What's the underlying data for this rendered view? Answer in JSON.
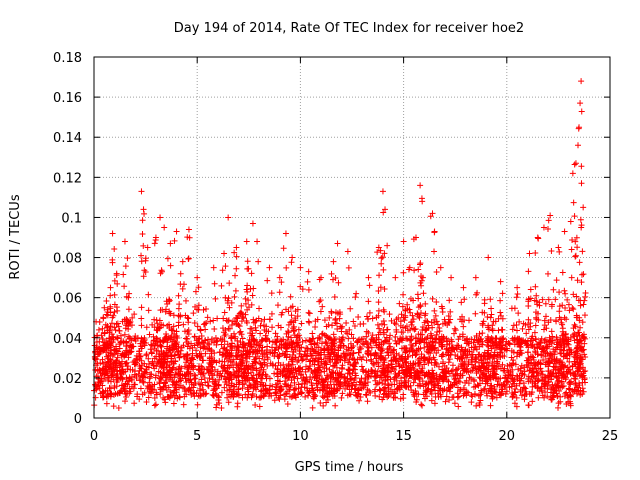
{
  "chart_data": {
    "type": "scatter",
    "title": "Day 194 of 2014, Rate Of TEC Index for receiver hoe2",
    "xlabel": "GPS time / hours",
    "ylabel": "ROTI / TECUs",
    "xlim": [
      0,
      25
    ],
    "ylim": [
      0,
      0.18
    ],
    "xticks": [
      0,
      5,
      10,
      15,
      20,
      25
    ],
    "xtick_labels": [
      "0",
      "5",
      "10",
      "15",
      "20",
      "25"
    ],
    "yticks": [
      0,
      0.02,
      0.04,
      0.06,
      0.08,
      0.1,
      0.12,
      0.14,
      0.16,
      0.18
    ],
    "ytick_labels": [
      "0",
      "0.02",
      "0.04",
      "0.06",
      "0.08",
      "0.1",
      "0.12",
      "0.14",
      "0.16",
      "0.18"
    ],
    "grid": true,
    "marker": "+",
    "color": "#ff0000",
    "data_range_x": [
      0,
      23.8
    ],
    "baseline_range": [
      0.01,
      0.04
    ],
    "spikes": [
      {
        "x": 0.1,
        "y": 0.048
      },
      {
        "x": 0.5,
        "y": 0.055
      },
      {
        "x": 0.8,
        "y": 0.065
      },
      {
        "x": 0.9,
        "y": 0.092
      },
      {
        "x": 1.1,
        "y": 0.072
      },
      {
        "x": 1.5,
        "y": 0.088
      },
      {
        "x": 1.7,
        "y": 0.062
      },
      {
        "x": 2.3,
        "y": 0.113
      },
      {
        "x": 2.4,
        "y": 0.104
      },
      {
        "x": 2.6,
        "y": 0.085
      },
      {
        "x": 3.0,
        "y": 0.09
      },
      {
        "x": 3.2,
        "y": 0.1
      },
      {
        "x": 3.4,
        "y": 0.095
      },
      {
        "x": 3.7,
        "y": 0.087
      },
      {
        "x": 4.0,
        "y": 0.093
      },
      {
        "x": 4.3,
        "y": 0.078
      },
      {
        "x": 4.6,
        "y": 0.094
      },
      {
        "x": 5.0,
        "y": 0.07
      },
      {
        "x": 5.8,
        "y": 0.075
      },
      {
        "x": 6.3,
        "y": 0.082
      },
      {
        "x": 6.5,
        "y": 0.1
      },
      {
        "x": 6.9,
        "y": 0.085
      },
      {
        "x": 7.4,
        "y": 0.088
      },
      {
        "x": 7.7,
        "y": 0.097
      },
      {
        "x": 7.9,
        "y": 0.088
      },
      {
        "x": 8.5,
        "y": 0.075
      },
      {
        "x": 9.0,
        "y": 0.07
      },
      {
        "x": 9.3,
        "y": 0.092
      },
      {
        "x": 9.6,
        "y": 0.08
      },
      {
        "x": 10.0,
        "y": 0.075
      },
      {
        "x": 10.4,
        "y": 0.073
      },
      {
        "x": 11.0,
        "y": 0.07
      },
      {
        "x": 11.6,
        "y": 0.078
      },
      {
        "x": 11.8,
        "y": 0.087
      },
      {
        "x": 12.3,
        "y": 0.083
      },
      {
        "x": 12.7,
        "y": 0.062
      },
      {
        "x": 13.3,
        "y": 0.07
      },
      {
        "x": 13.8,
        "y": 0.085
      },
      {
        "x": 14.0,
        "y": 0.113
      },
      {
        "x": 14.1,
        "y": 0.104
      },
      {
        "x": 14.6,
        "y": 0.07
      },
      {
        "x": 15.0,
        "y": 0.088
      },
      {
        "x": 15.3,
        "y": 0.075
      },
      {
        "x": 15.6,
        "y": 0.09
      },
      {
        "x": 15.8,
        "y": 0.116
      },
      {
        "x": 15.9,
        "y": 0.108
      },
      {
        "x": 16.4,
        "y": 0.102
      },
      {
        "x": 16.5,
        "y": 0.093
      },
      {
        "x": 16.8,
        "y": 0.075
      },
      {
        "x": 17.3,
        "y": 0.07
      },
      {
        "x": 17.9,
        "y": 0.065
      },
      {
        "x": 18.5,
        "y": 0.07
      },
      {
        "x": 19.1,
        "y": 0.08
      },
      {
        "x": 19.7,
        "y": 0.068
      },
      {
        "x": 20.5,
        "y": 0.065
      },
      {
        "x": 21.1,
        "y": 0.082
      },
      {
        "x": 21.5,
        "y": 0.09
      },
      {
        "x": 21.8,
        "y": 0.095
      },
      {
        "x": 22.1,
        "y": 0.101
      },
      {
        "x": 22.5,
        "y": 0.085
      },
      {
        "x": 22.8,
        "y": 0.093
      },
      {
        "x": 23.1,
        "y": 0.098
      },
      {
        "x": 23.2,
        "y": 0.122
      },
      {
        "x": 23.35,
        "y": 0.127
      },
      {
        "x": 23.45,
        "y": 0.136
      },
      {
        "x": 23.5,
        "y": 0.145
      },
      {
        "x": 23.55,
        "y": 0.157
      },
      {
        "x": 23.6,
        "y": 0.168
      },
      {
        "x": 23.7,
        "y": 0.105
      }
    ],
    "hot_regions": [
      {
        "from": 0.6,
        "to": 1.8,
        "level": 0.06
      },
      {
        "from": 3.0,
        "to": 4.6,
        "level": 0.06
      },
      {
        "from": 6.3,
        "to": 7.8,
        "level": 0.065
      },
      {
        "from": 9.3,
        "to": 9.8,
        "level": 0.055
      },
      {
        "from": 11.5,
        "to": 12.0,
        "level": 0.055
      },
      {
        "from": 14.0,
        "to": 17.0,
        "level": 0.06
      },
      {
        "from": 18.8,
        "to": 19.4,
        "level": 0.06
      },
      {
        "from": 21.0,
        "to": 23.8,
        "level": 0.065
      }
    ]
  }
}
